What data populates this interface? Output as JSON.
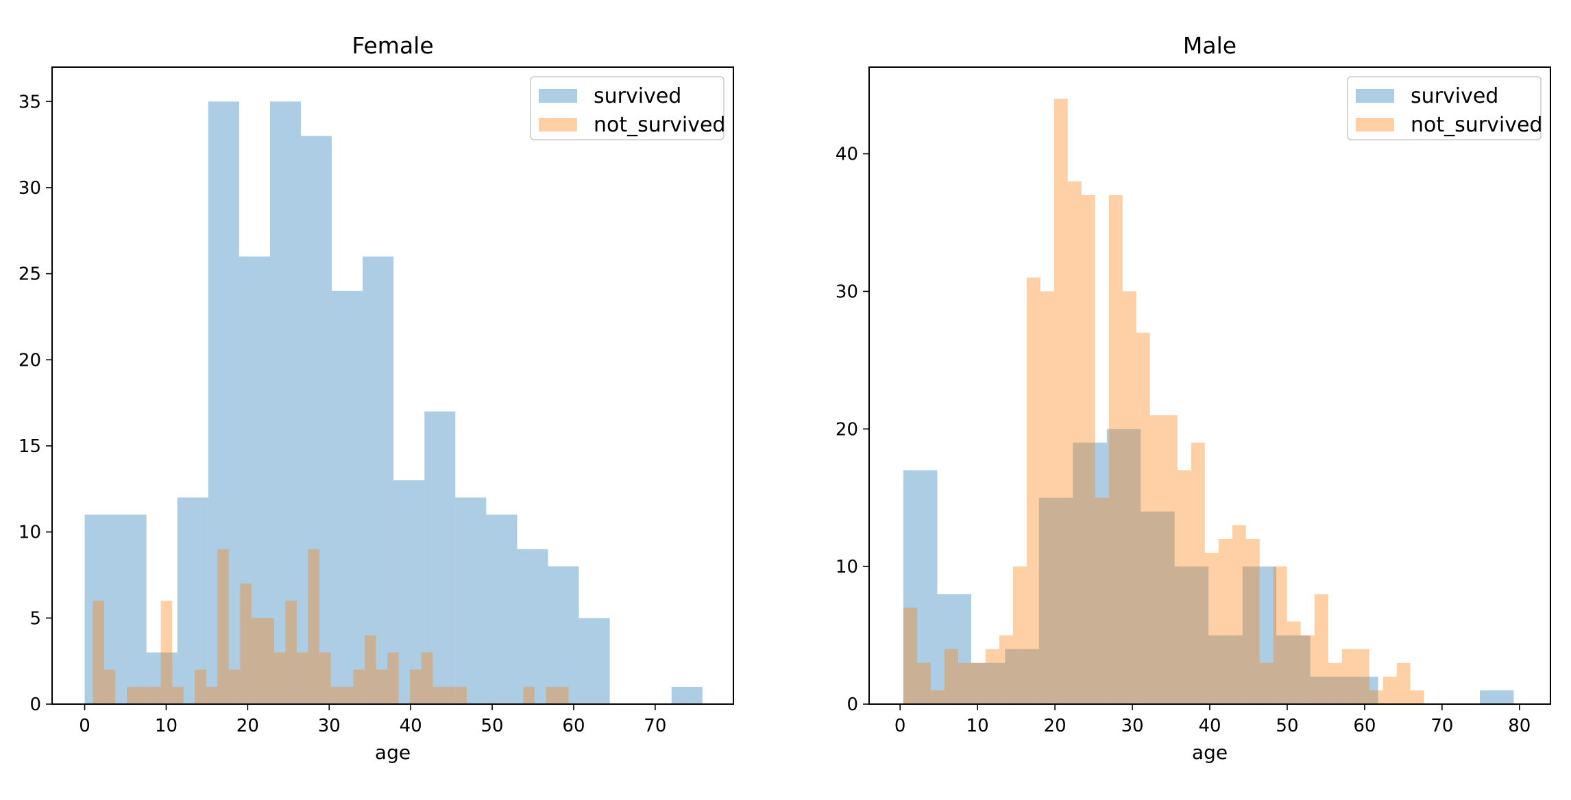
{
  "chart_data": [
    {
      "type": "histogram",
      "title": "Female",
      "xlabel": "age",
      "ylabel": "",
      "xlim": [
        -4.0,
        79.6
      ],
      "ylim": [
        0,
        37
      ],
      "xticks": [
        0,
        10,
        20,
        30,
        40,
        50,
        60,
        70
      ],
      "yticks": [
        0,
        5,
        10,
        15,
        20,
        25,
        30,
        35
      ],
      "grid": false,
      "legend_position": "top-right",
      "series": [
        {
          "name": "survived",
          "color": "#1f77b4",
          "alpha": 0.37,
          "bin_start": 0.0,
          "bin_width": 3.79,
          "counts": [
            11,
            11,
            3,
            12,
            35,
            26,
            35,
            33,
            24,
            26,
            13,
            17,
            12,
            11,
            9,
            8,
            5,
            0,
            0,
            1
          ]
        },
        {
          "name": "not_survived",
          "color": "#ff7f0e",
          "alpha": 0.37,
          "bin_start": 1.0,
          "bin_width": 1.39,
          "counts": [
            6,
            2,
            0,
            1,
            1,
            1,
            6,
            1,
            0,
            2,
            1,
            9,
            2,
            7,
            5,
            5,
            3,
            6,
            3,
            9,
            3,
            1,
            1,
            2,
            4,
            2,
            3,
            0,
            2,
            3,
            1,
            1,
            1,
            0,
            0,
            0,
            0,
            0,
            1,
            0,
            1,
            1
          ]
        }
      ]
    },
    {
      "type": "histogram",
      "title": "Male",
      "xlabel": "age",
      "ylabel": "",
      "xlim": [
        -4.0,
        84.0
      ],
      "ylim": [
        0,
        46.3
      ],
      "xticks": [
        0,
        10,
        20,
        30,
        40,
        50,
        60,
        70,
        80
      ],
      "yticks": [
        0,
        10,
        20,
        30,
        40
      ],
      "grid": false,
      "legend_position": "top-right",
      "series": [
        {
          "name": "survived",
          "color": "#1f77b4",
          "alpha": 0.37,
          "bin_start": 0.42,
          "bin_width": 4.38,
          "counts": [
            17,
            8,
            3,
            4,
            15,
            19,
            20,
            14,
            10,
            5,
            10,
            5,
            2,
            2,
            0,
            0,
            0,
            1
          ]
        },
        {
          "name": "not_survived",
          "color": "#ff7f0e",
          "alpha": 0.37,
          "bin_start": 0.42,
          "bin_width": 1.77,
          "counts": [
            7,
            3,
            1,
            4,
            3,
            3,
            4,
            5,
            10,
            31,
            30,
            44,
            38,
            37,
            15,
            37,
            30,
            27,
            21,
            21,
            17,
            19,
            11,
            12,
            13,
            12,
            3,
            10,
            6,
            5,
            8,
            3,
            4,
            4,
            1,
            2,
            3,
            1
          ]
        }
      ]
    }
  ]
}
